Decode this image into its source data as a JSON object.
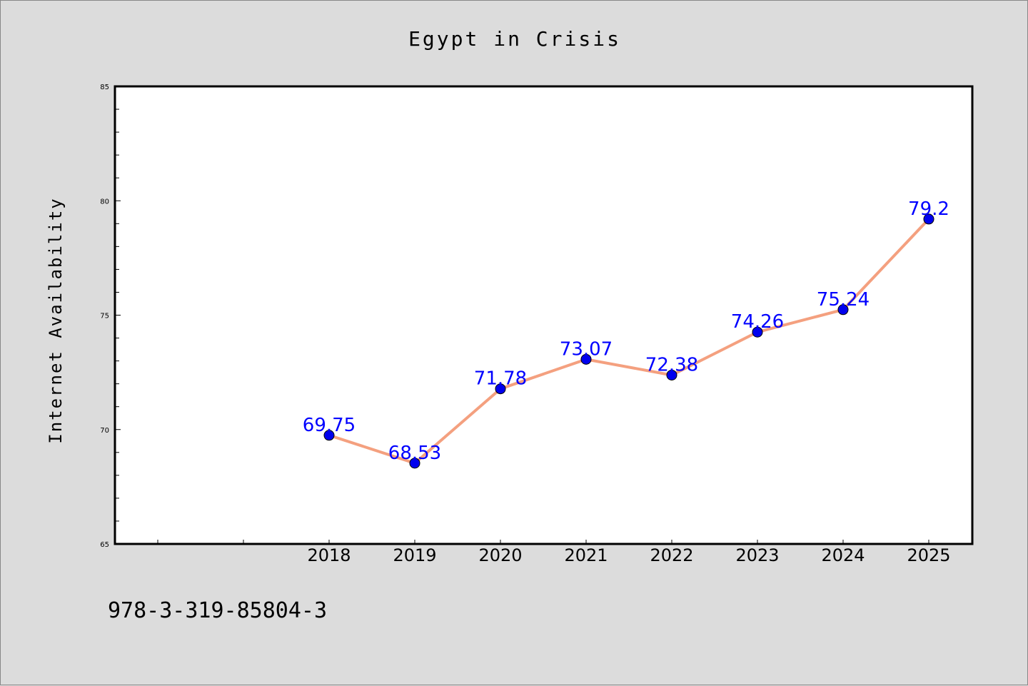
{
  "chart_data": {
    "type": "line",
    "title": "Egypt in Crisis",
    "xlabel": "",
    "ylabel": "Internet Availability",
    "categories": [
      "2018",
      "2019",
      "2020",
      "2021",
      "2022",
      "2023",
      "2024",
      "2025"
    ],
    "series": [
      {
        "values": [
          69.75,
          68.53,
          71.78,
          73.07,
          72.38,
          74.26,
          75.24,
          79.2
        ],
        "labels": [
          "69.75",
          "68.53",
          "71.78",
          "73.07",
          "72.38",
          "74.26",
          "75.24",
          "79.2"
        ],
        "line_color": "#f4a07f",
        "marker_color": "#0000ee"
      }
    ],
    "ylim": [
      65,
      85
    ],
    "y_ticks": [
      "65",
      "70",
      "75",
      "80",
      "85"
    ],
    "grid": false,
    "legend": "none"
  },
  "footer": {
    "isbn": "978-3-319-85804-3"
  }
}
